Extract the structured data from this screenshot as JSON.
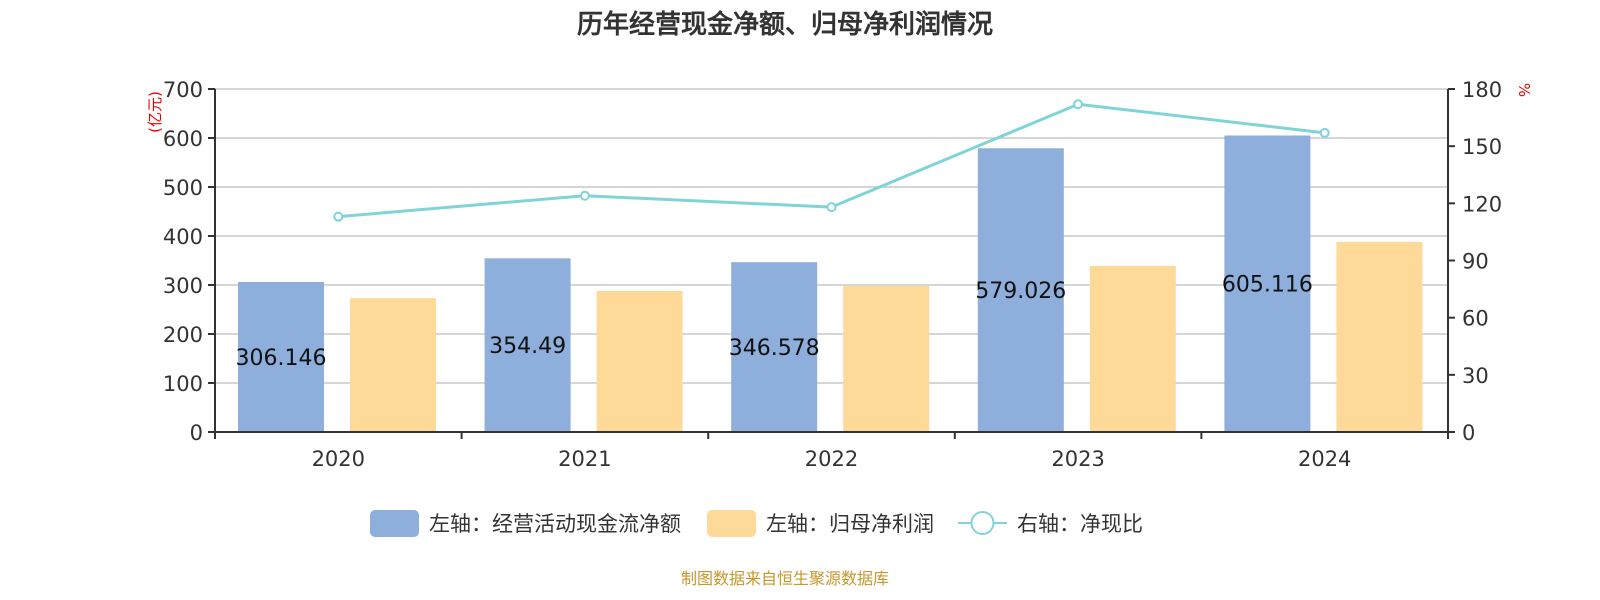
{
  "chart_data": {
    "type": "bar+line",
    "title": "历年经营现金净额、归母净利润情况",
    "categories": [
      "2020",
      "2021",
      "2022",
      "2023",
      "2024"
    ],
    "left_axis": {
      "unit": "(亿元)",
      "range": [
        0,
        700
      ],
      "ticks": [
        0,
        100,
        200,
        300,
        400,
        500,
        600,
        700
      ]
    },
    "right_axis": {
      "unit": "%",
      "range": [
        0,
        180
      ],
      "ticks": [
        0,
        30,
        60,
        90,
        120,
        150,
        180
      ]
    },
    "grid": true,
    "legend_position": "bottom",
    "series": [
      {
        "name": "左轴：经营活动现金流净额",
        "type": "bar",
        "axis": "left",
        "color": "#8eaedb",
        "values": [
          306.146,
          354.49,
          346.578,
          579.026,
          605.116
        ],
        "labels": [
          "306.146",
          "354.49",
          "346.578",
          "579.026",
          "605.116"
        ]
      },
      {
        "name": "左轴：归母净利润",
        "type": "bar",
        "axis": "left",
        "color": "#fed998",
        "values": [
          273,
          288,
          298,
          339,
          388
        ]
      },
      {
        "name": "右轴：净现比",
        "type": "line",
        "axis": "right",
        "color": "#80d4d8",
        "values": [
          113,
          124,
          118,
          172,
          157
        ]
      }
    ]
  },
  "source": "制图数据来自恒生聚源数据库"
}
